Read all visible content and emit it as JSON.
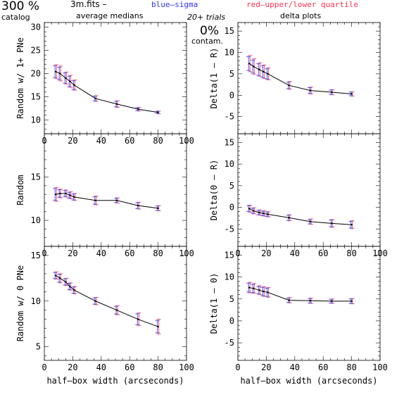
{
  "header": {
    "percent_big": "300 %",
    "catalog": "catalog",
    "file": "3m.fits  –",
    "average_medians": "average medians",
    "blue_sigma": "blue–sigma",
    "red_quartile": "red–upper/lower quartile",
    "trials": "20+ trials",
    "delta_plots": "delta plots",
    "contam_pct": "0%",
    "contam": "contam."
  },
  "colors": {
    "sigma": "#5555ee",
    "quartile": "#ee5577",
    "line": "#000000",
    "sigma_text": "#3333ff",
    "quartile_text": "#ff3355"
  },
  "chart_data": [
    {
      "type": "line",
      "ylabel": "Random w/ 1+ PNe",
      "xlim": [
        0,
        100
      ],
      "ylim": [
        7,
        31
      ],
      "xticks": [
        "0",
        "20",
        "40",
        "60",
        "80",
        "100"
      ],
      "yticks": [
        10,
        15,
        20,
        25,
        30
      ],
      "x": [
        8,
        11,
        15,
        18,
        21,
        36,
        51,
        66,
        80
      ],
      "y": [
        20.4,
        20.0,
        19.0,
        18.3,
        17.5,
        14.6,
        13.4,
        12.3,
        11.6
      ],
      "err": [
        1.5,
        1.6,
        1.3,
        1.3,
        1.1,
        0.6,
        0.7,
        0.4,
        0.3
      ],
      "grid": false
    },
    {
      "type": "line",
      "ylabel": "Delta(1 – R)",
      "xlim": [
        0,
        100
      ],
      "ylim": [
        -9,
        17
      ],
      "xticks": [],
      "yticks": [
        -5,
        0,
        5,
        10,
        15
      ],
      "x": [
        8,
        11,
        15,
        18,
        21,
        36,
        51,
        66,
        80
      ],
      "y": [
        7.4,
        6.7,
        6.0,
        5.5,
        5.0,
        2.3,
        1.1,
        0.7,
        0.3
      ],
      "err": [
        1.9,
        1.8,
        1.6,
        1.6,
        1.4,
        0.9,
        0.8,
        0.6,
        0.5
      ],
      "grid": false
    },
    {
      "type": "line",
      "ylabel": "Random",
      "xlim": [
        0,
        100
      ],
      "ylim": [
        7,
        20
      ],
      "xticks": [
        "0",
        "20",
        "40",
        "60",
        "80",
        "100"
      ],
      "yticks": [
        10,
        15
      ],
      "x": [
        8,
        11,
        15,
        18,
        21,
        36,
        51,
        66,
        80
      ],
      "y": [
        13.0,
        13.1,
        13.1,
        12.9,
        12.7,
        12.3,
        12.3,
        11.7,
        11.4
      ],
      "err": [
        0.8,
        0.5,
        0.4,
        0.4,
        0.4,
        0.5,
        0.3,
        0.4,
        0.3
      ],
      "grid": false
    },
    {
      "type": "line",
      "ylabel": "Delta(0 – R)",
      "xlim": [
        0,
        100
      ],
      "ylim": [
        -9,
        17
      ],
      "xticks": [
        "0",
        "20",
        "40",
        "60",
        "80",
        "100"
      ],
      "yticks": [
        -5,
        0,
        5,
        10,
        15
      ],
      "x": [
        8,
        11,
        15,
        18,
        21,
        36,
        51,
        66,
        80
      ],
      "y": [
        -0.3,
        -0.8,
        -1.2,
        -1.4,
        -1.6,
        -2.4,
        -3.3,
        -3.7,
        -4.0
      ],
      "err": [
        0.8,
        0.7,
        0.6,
        0.6,
        0.6,
        0.7,
        0.6,
        0.9,
        0.9
      ],
      "grid": false
    },
    {
      "type": "line",
      "ylabel": "Random w/ 0 PNe",
      "xlim": [
        0,
        100
      ],
      "ylim": [
        3.5,
        16
      ],
      "xticks": [
        "0",
        "20",
        "40",
        "60",
        "80",
        "100"
      ],
      "yticks": [
        5,
        10,
        15
      ],
      "x": [
        8,
        11,
        15,
        18,
        21,
        36,
        51,
        66,
        80
      ],
      "y": [
        12.8,
        12.5,
        12.1,
        11.6,
        11.2,
        10.0,
        9.0,
        8.0,
        7.2
      ],
      "err": [
        0.4,
        0.5,
        0.4,
        0.4,
        0.4,
        0.4,
        0.5,
        0.7,
        0.8
      ],
      "xlabel": "half–box width (arcseconds)",
      "grid": false
    },
    {
      "type": "line",
      "ylabel": "Delta(1 – 0)",
      "xlim": [
        0,
        100
      ],
      "ylim": [
        -9,
        17
      ],
      "xticks": [
        "0",
        "20",
        "40",
        "60",
        "80",
        "100"
      ],
      "yticks": [
        -5,
        0,
        5,
        10,
        15
      ],
      "x": [
        8,
        11,
        15,
        18,
        21,
        36,
        51,
        66,
        80
      ],
      "y": [
        7.6,
        7.4,
        7.0,
        6.7,
        6.5,
        4.7,
        4.6,
        4.5,
        4.5
      ],
      "err": [
        1.2,
        1.1,
        1.0,
        1.1,
        1.1,
        0.6,
        0.6,
        0.5,
        0.6
      ],
      "xlabel": "half–box width (arcseconds)",
      "grid": false
    }
  ]
}
